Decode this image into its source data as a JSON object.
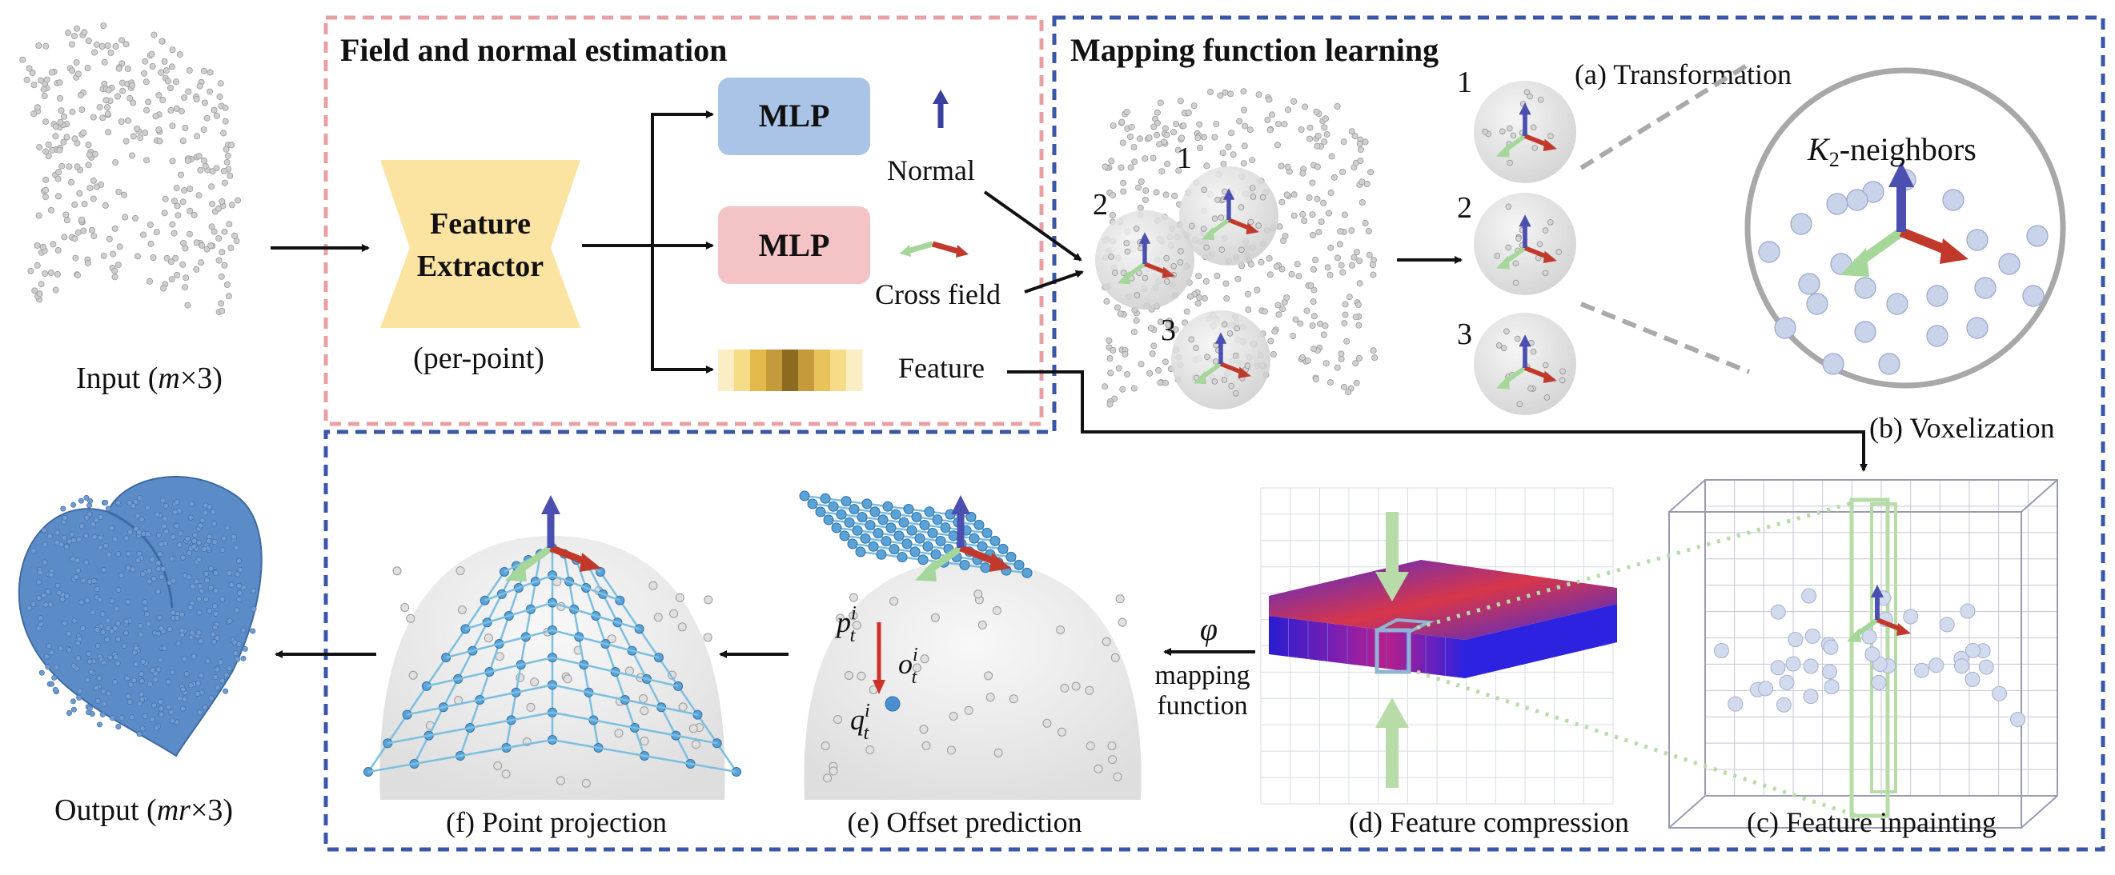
{
  "sections": {
    "field_normal_title": "Field and normal estimation",
    "mapping_title": "Mapping function learning"
  },
  "input": {
    "label_prefix": "Input (",
    "label_var": "m",
    "label_suffix": "×3)"
  },
  "output": {
    "label_prefix": "Output (",
    "label_var": "mr",
    "label_suffix": "×3)"
  },
  "feature_extractor": {
    "line1": "Feature",
    "line2": "Extractor",
    "caption": "(per-point)"
  },
  "mlp_top": {
    "label": "MLP",
    "output": "Normal"
  },
  "mlp_bottom": {
    "label": "MLP",
    "output": "Cross field"
  },
  "feature_bar": {
    "output": "Feature",
    "colors": [
      "#fbeec4",
      "#f6dc86",
      "#e4b94c",
      "#c49a3a",
      "#8c6a1f",
      "#c49a3a",
      "#e8c25a",
      "#f6dc86",
      "#fbeec4"
    ]
  },
  "patches": [
    "1",
    "2",
    "3"
  ],
  "transformation": {
    "title": "(a) Transformation",
    "items": [
      "1",
      "2",
      "3"
    ],
    "neighbors_var": "K",
    "neighbors_sub": "2",
    "neighbors_suffix": "-neighbors"
  },
  "steps": {
    "voxelization": "(b) Voxelization",
    "inpainting": "(c) Feature inpainting",
    "compression": "(d) Feature compression",
    "offset": "(e) Offset prediction",
    "projection": "(f) Point projection"
  },
  "mapping": {
    "symbol": "φ",
    "line1": "mapping",
    "line2": "function"
  },
  "offset_symbols": {
    "p": "p",
    "o": "o",
    "q": "q",
    "sup": "i",
    "sub": "t"
  },
  "colors": {
    "pink_border": "#e8a0a4",
    "blue_border": "#3a56a8",
    "mlp_blue": "#a9c4e6",
    "mlp_pink": "#f3c3c5",
    "extractor_yellow": "#fbe3a2",
    "normal_arrow": "#3b3fa0",
    "field_red": "#c0392b",
    "field_green": "#a5d69a",
    "output_blue": "#5c8cc7"
  }
}
